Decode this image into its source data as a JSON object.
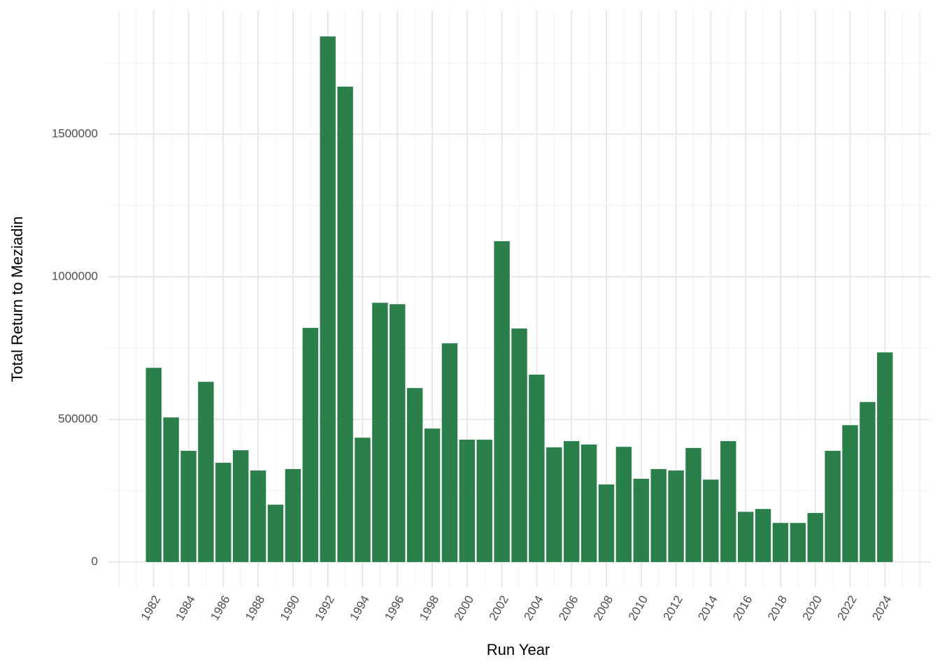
{
  "chart_data": {
    "type": "bar",
    "x_label": "Run Year",
    "y_label": "Total Return to Meziadin",
    "x": [
      1982,
      1983,
      1984,
      1985,
      1986,
      1987,
      1988,
      1989,
      1990,
      1991,
      1992,
      1993,
      1994,
      1995,
      1996,
      1997,
      1998,
      1999,
      2000,
      2001,
      2002,
      2003,
      2004,
      2005,
      2006,
      2007,
      2008,
      2009,
      2010,
      2011,
      2012,
      2013,
      2014,
      2015,
      2016,
      2017,
      2018,
      2019,
      2020,
      2021,
      2022,
      2023,
      2024
    ],
    "values": [
      681000,
      507000,
      390000,
      632000,
      348000,
      392000,
      321000,
      201000,
      326000,
      821000,
      1843000,
      1667000,
      436000,
      909000,
      904000,
      610000,
      468000,
      767000,
      429000,
      429000,
      1125000,
      819000,
      657000,
      402000,
      424000,
      412000,
      272000,
      404000,
      292000,
      326000,
      321000,
      400000,
      289000,
      424000,
      176000,
      186000,
      137000,
      137000,
      172000,
      390000,
      480000,
      561000,
      735000
    ],
    "color": "#2a7f4a",
    "xlim": [
      1979.4,
      2026.6
    ],
    "xticks": [
      1982,
      1984,
      1986,
      1988,
      1990,
      1992,
      1994,
      1996,
      1998,
      2000,
      2002,
      2004,
      2006,
      2008,
      2010,
      2012,
      2014,
      2016,
      2018,
      2020,
      2022,
      2024
    ],
    "ylim": [
      -88000,
      1934000
    ],
    "yticks": [
      0,
      500000,
      1000000,
      1500000
    ],
    "grid": true
  }
}
